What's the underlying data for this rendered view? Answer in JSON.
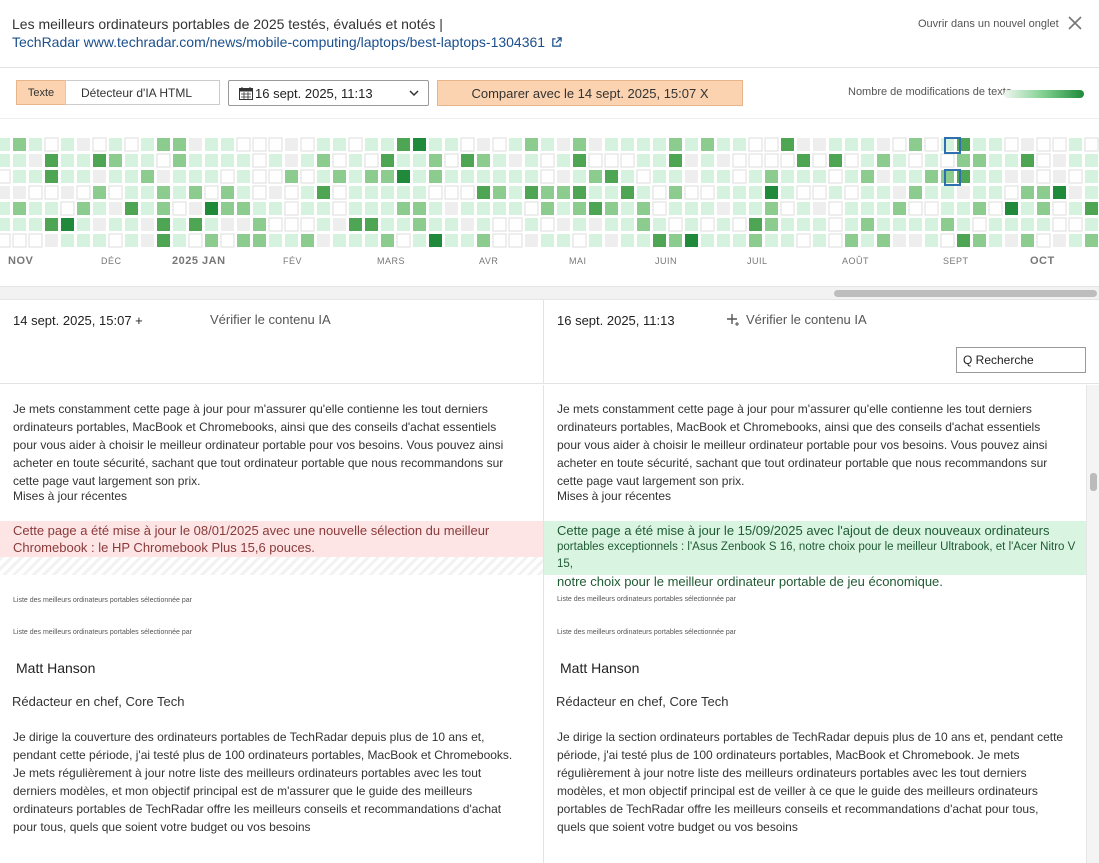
{
  "header": {
    "title_line1": "Les meilleurs ordinateurs portables de 2025 testés, évalués et notés |",
    "title_line2": "TechRadar www.techradar.com/news/mobile-computing/laptops/best-laptops-1304361",
    "open_new_tab": "Ouvrir dans un nouvel onglet"
  },
  "controls": {
    "mode_text": "Texte",
    "mode_detector": "Détecteur d'IA HTML",
    "date_selected": "16 sept. 2025, 11:13",
    "compare_label": "Comparer avec le 14 sept. 2025, 15:07 X",
    "modifications_label": "Nombre de modifications de texte"
  },
  "calendar": {
    "months": [
      "NOV",
      "DÉC",
      "2025 JAN",
      "FÉV",
      "MARS",
      "AVR",
      "MAI",
      "JUIN",
      "JUIL",
      "AOÛT",
      "SEPT",
      "OCT"
    ],
    "colors": {
      "empty": "#ffffff",
      "none": "#eeeeee",
      "light": "#d5f2df",
      "mid": "#8ccc8f",
      "dark": "#4ea655",
      "darkest": "#1e8a3a",
      "selected_border": "#2f6fb0"
    }
  },
  "left_panel": {
    "timestamp": "14 sept. 2025, 15:07 +",
    "verify_label": "Vérifier le contenu IA",
    "intro": "Je mets constamment cette page à jour pour m'assurer qu'elle contienne les tout derniers ordinateurs portables, MacBook et Chromebooks, ainsi que des conseils d'achat essentiels pour vous aider à choisir le meilleur ordinateur portable pour vos besoins. Vous pouvez ainsi acheter en toute sécurité, sachant que tout ordinateur portable que nous recommandons sur cette page vaut largement son prix.",
    "recent_updates": "Mises à jour récentes",
    "update_text": "Cette page a été mise à jour le 08/01/2025 avec une nouvelle sélection du meilleur Chromebook : le HP Chromebook Plus 15,6 pouces.",
    "list_by_1": "Liste des meilleurs ordinateurs portables sélectionnée par",
    "list_by_2": "Liste des meilleurs ordinateurs portables sélectionnée par",
    "author": "Matt Hanson",
    "role": "Rédacteur en chef, Core Tech",
    "bio": "Je dirige la couverture des ordinateurs portables de TechRadar depuis plus de 10 ans et, pendant cette période, j'ai testé plus de 100 ordinateurs portables, MacBook et Chromebooks. Je mets régulièrement à jour notre liste des meilleurs ordinateurs portables avec les tout derniers modèles, et mon objectif principal est de m'assurer que le guide des meilleurs ordinateurs portables de TechRadar offre les meilleurs conseils et recommandations d'achat pour tous, quels que soient votre budget ou vos besoins"
  },
  "right_panel": {
    "timestamp": "16 sept. 2025, 11:13",
    "verify_label": "Vérifier le contenu IA",
    "search_placeholder": "Q Recherche",
    "intro": "Je mets constamment cette page à jour pour m'assurer qu'elle contienne les tout derniers ordinateurs portables, MacBook et Chromebooks, ainsi que des conseils d'achat essentiels pour vous aider à choisir le meilleur ordinateur portable pour vos besoins. Vous pouvez ainsi acheter en toute sécurité, sachant que tout ordinateur portable que nous recommandons sur cette page vaut largement son prix.",
    "recent_updates": "Mises à jour récentes",
    "update_line1": "Cette page a été mise à jour le 15/09/2025 avec l'ajout de deux nouveaux ordinateurs",
    "update_line2": "portables exceptionnels : l'Asus Zenbook S 16, notre choix pour le meilleur Ultrabook, et l'Acer Nitro V 15,",
    "update_line3": "notre choix pour le meilleur ordinateur portable de jeu économique.",
    "list_by_1": "Liste des meilleurs ordinateurs portables sélectionnée par",
    "list_by_2": "Liste des meilleurs ordinateurs portables sélectionnée par",
    "author": "Matt Hanson",
    "role": "Rédacteur en chef, Core Tech",
    "bio": "Je dirige la section ordinateurs portables de TechRadar depuis plus de 10 ans et, pendant cette période, j'ai testé plus de 100 ordinateurs portables, MacBook et Chromebook. Je mets régulièrement à jour notre liste des meilleurs ordinateurs portables avec les tout derniers modèles, et mon objectif principal est de veiller à ce que le guide des meilleurs ordinateurs portables de TechRadar offre les meilleurs conseils et recommandations d'achat pour tous, quels que soient votre budget ou vos besoins"
  }
}
